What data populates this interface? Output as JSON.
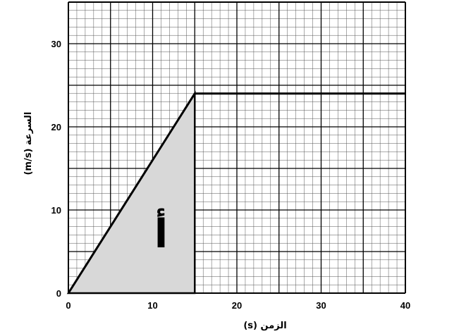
{
  "chart_data": {
    "type": "line",
    "xlabel": "الزمن (s)",
    "ylabel": "السرعة (m/s)",
    "xlim": [
      0,
      40
    ],
    "ylim": [
      0,
      35
    ],
    "x_ticks": [
      "0",
      "10",
      "20",
      "30",
      "40"
    ],
    "y_ticks": [
      "0",
      "10",
      "20",
      "30"
    ],
    "grid": true,
    "series": [
      {
        "x": [
          0,
          15,
          40
        ],
        "y": [
          0,
          24,
          24
        ]
      }
    ],
    "shaded_region": {
      "label": "أ",
      "vertices": [
        [
          0,
          0
        ],
        [
          15,
          24
        ],
        [
          15,
          0
        ]
      ],
      "fill": "#d8d8d8"
    },
    "colors": {
      "line": "#000000",
      "grid_major": "#000000",
      "grid_minor": "#555555",
      "fill": "#d8d8d8"
    }
  }
}
